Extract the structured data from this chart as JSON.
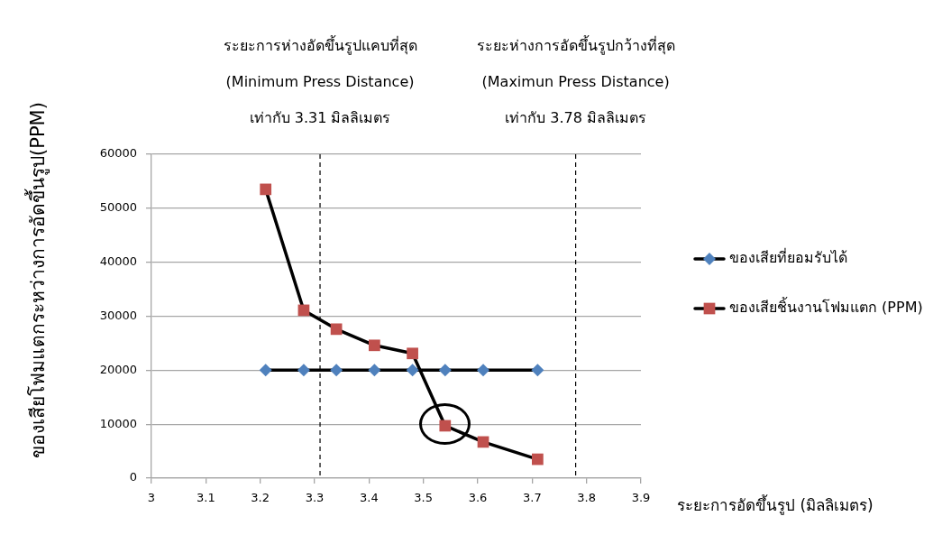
{
  "chart_data": {
    "type": "line",
    "xlabel": "ระยะการอัดขึ้นรูป (มิลลิเมตร)",
    "ylabel": "ของเสียโฟมแตกระหว่างการอัดขึ้นรูป(PPM)",
    "x": [
      3.21,
      3.28,
      3.34,
      3.41,
      3.48,
      3.54,
      3.61,
      3.71
    ],
    "series": [
      {
        "name": "ของเสียที่ยอมรับได้",
        "color": "#4f81bd",
        "marker": "diamond",
        "values": [
          20000,
          20000,
          20000,
          20000,
          20000,
          20000,
          20000,
          20000
        ]
      },
      {
        "name": "ของเสียชิ้นงานโฟมแตก (PPM)",
        "color": "#c0504d",
        "marker": "square",
        "values": [
          53500,
          31100,
          27600,
          24600,
          23100,
          9700,
          6700,
          3500
        ]
      }
    ],
    "xlim": [
      3,
      3.9
    ],
    "xticks": [
      3,
      3.1,
      3.2,
      3.3,
      3.4,
      3.5,
      3.6,
      3.7,
      3.8,
      3.9
    ],
    "ylim": [
      0,
      60000
    ],
    "yticks": [
      0,
      10000,
      20000,
      30000,
      40000,
      50000,
      60000
    ],
    "grid": "y",
    "legend": "right",
    "line_style": "solid",
    "ref_lines": [
      {
        "axis": "x",
        "value": 3.31,
        "label": "ระยะการห่างอัดขึ้นรูปแคบที่สุด\n(Minimum Press Distance)\nเท่ากับ 3.31 มิลลิเมตร",
        "color": "#000000",
        "line_style": "dashed"
      },
      {
        "axis": "x",
        "value": 3.78,
        "label": "ระยะห่างการอัดขึ้นรูปกว้างที่สุด\n(Maximun Press Distance)\nเท่ากับ 3.78 มิลลิเมตร",
        "color": "#000000",
        "line_style": "dashed"
      }
    ]
  }
}
